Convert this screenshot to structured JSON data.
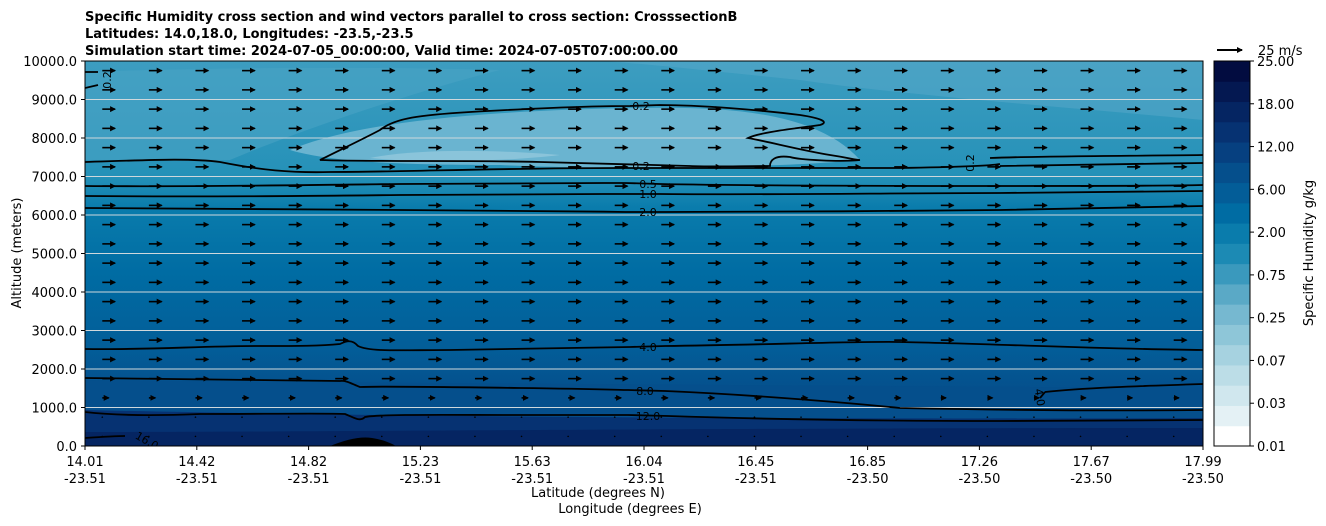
{
  "chart_data": {
    "type": "heatmap",
    "title_lines": [
      "Specific Humidity cross section and wind vectors parallel to cross section: CrosssectionB",
      "Latitudes: 14.0,18.0, Longitudes: -23.5,-23.5",
      "Simulation start time: 2024-07-05_00:00:00, Valid time: 2024-07-05T07:00:00.00"
    ],
    "ylabel": "Altitude (meters)",
    "xlabel_lat": "Latitude (degrees N)",
    "xlabel_lon": "Longitude (degrees E)",
    "ylim": [
      0,
      10000
    ],
    "yticks": [
      "0.0",
      "1000.0",
      "2000.0",
      "3000.0",
      "4000.0",
      "5000.0",
      "6000.0",
      "7000.0",
      "8000.0",
      "9000.0",
      "10000.0"
    ],
    "xticks": [
      {
        "lat": "14.01",
        "lon": "-23.51"
      },
      {
        "lat": "14.42",
        "lon": "-23.51"
      },
      {
        "lat": "14.82",
        "lon": "-23.51"
      },
      {
        "lat": "15.23",
        "lon": "-23.51"
      },
      {
        "lat": "15.63",
        "lon": "-23.51"
      },
      {
        "lat": "16.04",
        "lon": "-23.51"
      },
      {
        "lat": "16.45",
        "lon": "-23.51"
      },
      {
        "lat": "16.85",
        "lon": "-23.50"
      },
      {
        "lat": "17.26",
        "lon": "-23.50"
      },
      {
        "lat": "17.67",
        "lon": "-23.50"
      },
      {
        "lat": "17.99",
        "lon": "-23.50"
      }
    ],
    "colorbar": {
      "label": "Specific Humidity g/kg",
      "tick_labels": [
        "0.01",
        "0.03",
        "0.07",
        "0.25",
        "0.75",
        "2.00",
        "6.00",
        "12.00",
        "18.00",
        "25.00"
      ],
      "colors": [
        "#ffffff",
        "#e4f1f5",
        "#d0e7ee",
        "#bcdde7",
        "#a6d2e0",
        "#8ec6d8",
        "#76b8d0",
        "#5aa9c6",
        "#3a99bd",
        "#1c8ab4",
        "#0a7cac",
        "#006ca3",
        "#035d98",
        "#054f8c",
        "#064080",
        "#063272",
        "#052562",
        "#041851",
        "#020c40"
      ]
    },
    "contours": [
      {
        "label": "0.2",
        "alt_m": 8800
      },
      {
        "label": "0.2",
        "alt_m": 7200
      },
      {
        "label": "0.5",
        "alt_m": 6700
      },
      {
        "label": "1.0",
        "alt_m": 6400
      },
      {
        "label": "2.0",
        "alt_m": 6100
      },
      {
        "label": "4.0",
        "alt_m": 2550
      },
      {
        "label": "8.0",
        "alt_m": 1400
      },
      {
        "label": "12.0",
        "alt_m": 800
      },
      {
        "label": "16.0",
        "alt_m": 200
      }
    ],
    "inline_labels": {
      "upper_left": "0.2",
      "upper_right": "0.2",
      "low_right": "4.0"
    },
    "quiver_key": {
      "label": "25 m/s",
      "speed_ms": 25
    },
    "wind_vectors": {
      "direction": "parallel to cross section, southward-to-northward",
      "typical_speed_ms": 8
    }
  }
}
